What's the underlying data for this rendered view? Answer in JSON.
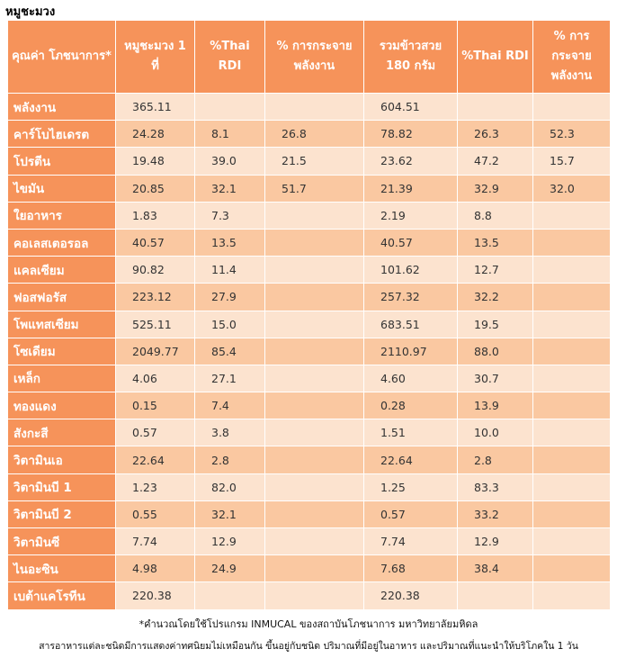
{
  "title": "หมูชะมวง",
  "headers": [
    "คุณค่า โภชนาการ*",
    "หมูชะมวง 1 ที่",
    "%Thai RDI",
    "% การกระจาย พลังงาน",
    "รวมข้าวสวย 180 กรัม",
    "%Thai RDI",
    "% การ กระจาย พลังงาน"
  ],
  "rows": [
    [
      "พลังงาน",
      "365.11",
      "",
      "",
      "604.51",
      "",
      ""
    ],
    [
      "คาร์โบไฮเดรต",
      "24.28",
      "8.1",
      "26.8",
      "78.82",
      "26.3",
      "52.3"
    ],
    [
      "โปรตีน",
      "19.48",
      "39.0",
      "21.5",
      "23.62",
      "47.2",
      "15.7"
    ],
    [
      "ไขมัน",
      "20.85",
      "32.1",
      "51.7",
      "21.39",
      "32.9",
      "32.0"
    ],
    [
      "ใยอาหาร",
      "1.83",
      "7.3",
      "",
      "2.19",
      "8.8",
      ""
    ],
    [
      "คอเลสเตอรอล",
      "40.57",
      "13.5",
      "",
      "40.57",
      "13.5",
      ""
    ],
    [
      "แคลเซียม",
      "90.82",
      "11.4",
      "",
      "101.62",
      "12.7",
      ""
    ],
    [
      "ฟอสฟอรัส",
      "223.12",
      "27.9",
      "",
      "257.32",
      "32.2",
      ""
    ],
    [
      "โพแทสเซียม",
      "525.11",
      "15.0",
      "",
      "683.51",
      "19.5",
      ""
    ],
    [
      "โซเดียม",
      "2049.77",
      "85.4",
      "",
      "2110.97",
      "88.0",
      ""
    ],
    [
      "เหล็ก",
      "4.06",
      "27.1",
      "",
      "4.60",
      "30.7",
      ""
    ],
    [
      "ทองแดง",
      "0.15",
      "7.4",
      "",
      "0.28",
      "13.9",
      ""
    ],
    [
      "สังกะสี",
      "0.57",
      "3.8",
      "",
      "1.51",
      "10.0",
      ""
    ],
    [
      "วิตามินเอ",
      "22.64",
      "2.8",
      "",
      "22.64",
      "2.8",
      ""
    ],
    [
      "วิตามินบี 1",
      "1.23",
      "82.0",
      "",
      "1.25",
      "83.3",
      ""
    ],
    [
      "วิตามินบี 2",
      "0.55",
      "32.1",
      "",
      "0.57",
      "33.2",
      ""
    ],
    [
      "วิตามินซี",
      "7.74",
      "12.9",
      "",
      "7.74",
      "12.9",
      ""
    ],
    [
      "ไนอะซิน",
      "4.98",
      "24.9",
      "",
      "7.68",
      "38.4",
      ""
    ],
    [
      "เบต้าแคโรทีน",
      "220.38",
      "",
      "",
      "220.38",
      "",
      ""
    ]
  ],
  "footnote1": "*คำนวณโดยใช้โปรแกรม INMUCAL ของสถาบันโภชนาการ มหาวิทยาลัยมหิดล",
  "footnote2": "สารอาหารแต่ละชนิดมีการแสดงค่าทศนิยมไม่เหมือนกัน ขึ้นอยู่กับชนิด ปริมาณที่มีอยู่ในอาหาร และปริมาณที่แนะนำให้บริโภคใน 1 วัน",
  "colors": {
    "header_bg": "#f6935a",
    "row_light": "#fce3cf",
    "row_dark": "#fac8a1"
  }
}
